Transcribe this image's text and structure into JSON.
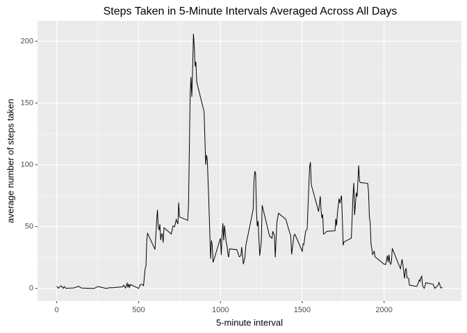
{
  "chart_data": {
    "type": "line",
    "title": "Steps Taken in 5-Minute Intervals Averaged Across All Days",
    "x_label": "5-minute interval",
    "y_label": "average number of steps taken",
    "x": [
      0,
      10,
      25,
      40,
      45,
      55,
      100,
      125,
      130,
      150,
      200,
      230,
      250,
      300,
      330,
      340,
      400,
      410,
      420,
      430,
      435,
      440,
      445,
      450,
      500,
      510,
      520,
      530,
      540,
      545,
      550,
      555,
      600,
      610,
      615,
      620,
      625,
      630,
      635,
      640,
      645,
      650,
      655,
      700,
      710,
      720,
      730,
      740,
      745,
      750,
      800,
      805,
      815,
      820,
      825,
      830,
      835,
      840,
      845,
      850,
      855,
      900,
      910,
      915,
      920,
      930,
      935,
      940,
      945,
      950,
      955,
      1000,
      1005,
      1010,
      1015,
      1020,
      1025,
      1030,
      1035,
      1040,
      1045,
      1050,
      1055,
      1100,
      1115,
      1125,
      1130,
      1140,
      1150,
      1155,
      1200,
      1205,
      1210,
      1215,
      1220,
      1225,
      1230,
      1240,
      1250,
      1255,
      1300,
      1315,
      1320,
      1330,
      1335,
      1345,
      1355,
      1400,
      1415,
      1430,
      1435,
      1450,
      1455,
      1500,
      1505,
      1510,
      1520,
      1530,
      1540,
      1545,
      1550,
      1555,
      1600,
      1610,
      1615,
      1620,
      1625,
      1630,
      1640,
      1650,
      1700,
      1705,
      1710,
      1715,
      1725,
      1730,
      1740,
      1745,
      1750,
      1755,
      1800,
      1810,
      1815,
      1820,
      1830,
      1835,
      1845,
      1850,
      1855,
      1900,
      1905,
      1910,
      1915,
      1920,
      1930,
      1940,
      1945,
      2000,
      2010,
      2020,
      2025,
      2030,
      2035,
      2040,
      2045,
      2050,
      2100,
      2110,
      2115,
      2125,
      2130,
      2135,
      2140,
      2150,
      2155,
      2200,
      2210,
      2215,
      2220,
      2225,
      2230,
      2235,
      2245,
      2250,
      2255,
      2300,
      2310,
      2315,
      2320,
      2330,
      2335,
      2340,
      2345,
      2350,
      2355
    ],
    "values": [
      1.7,
      0.1,
      2.1,
      0,
      1.5,
      0.1,
      0.3,
      1.1,
      1.8,
      0.3,
      0,
      0,
      1.5,
      0,
      0.6,
      0.5,
      1.2,
      2.6,
      0.3,
      4.1,
      0.7,
      3.5,
      0.8,
      3.1,
      0,
      3,
      3.3,
      2.2,
      16,
      18,
      39.5,
      44.5,
      31.5,
      53.8,
      63.5,
      50,
      47,
      52,
      39,
      44,
      44,
      37,
      49,
      44,
      50.5,
      49.9,
      55.7,
      52,
      69.5,
      57.8,
      55,
      68,
      157.5,
      171,
      155,
      177,
      206,
      195.9,
      179.6,
      183.4,
      167,
      143,
      100,
      108,
      103.7,
      66,
      45,
      24,
      38.8,
      34.8,
      21,
      40.6,
      27,
      42.4,
      52.7,
      38.9,
      50.8,
      44.3,
      37.4,
      34.7,
      28.3,
      25.1,
      31.9,
      31.4,
      25.5,
      26.5,
      33.4,
      19.6,
      25.3,
      34.5,
      63.9,
      87.6,
      94.8,
      92.8,
      63,
      50.2,
      54.5,
      26.5,
      38.3,
      67.3,
      42.3,
      40.5,
      46.2,
      42.6,
      25.1,
      53.5,
      60.8,
      55.8,
      48.7,
      42.3,
      27.5,
      43.2,
      43.8,
      30,
      36,
      35.5,
      45.9,
      48.1,
      82.9,
      98.7,
      102.1,
      83.9,
      62.1,
      74.5,
      63.2,
      56.9,
      59.8,
      43.9,
      44.7,
      46.2,
      46.6,
      56.3,
      50.7,
      61.2,
      72.7,
      68.9,
      75.1,
      56.5,
      34.8,
      37.5,
      40.7,
      74.7,
      85.3,
      59.3,
      77.4,
      74.2,
      99.5,
      86.6,
      85.6,
      84.9,
      77.8,
      58,
      53.4,
      36.3,
      27.4,
      30,
      25.5,
      19.6,
      19.3,
      26.5,
      21.2,
      27.3,
      21.3,
      19.5,
      21.3,
      32.3,
      15.9,
      23.5,
      19.2,
      8.1,
      14.7,
      16.3,
      8.7,
      8.1,
      2.6,
      1.5,
      4.6,
      6.9,
      5.7,
      8.6,
      9.8,
      2.2,
      0.1,
      1.6,
      4.6,
      3.3,
      0,
      0.8,
      1,
      2.6,
      4.7,
      3.3,
      0.6,
      0.2,
      1.1
    ],
    "color": "#000000",
    "xlim": [
      -117.75,
      2472.75
    ],
    "xticks": [
      0,
      500,
      1000,
      1500,
      2000
    ],
    "ylim": [
      -10.3,
      216.5
    ],
    "yticks": [
      0,
      50,
      100,
      150,
      200
    ],
    "grid": true
  }
}
